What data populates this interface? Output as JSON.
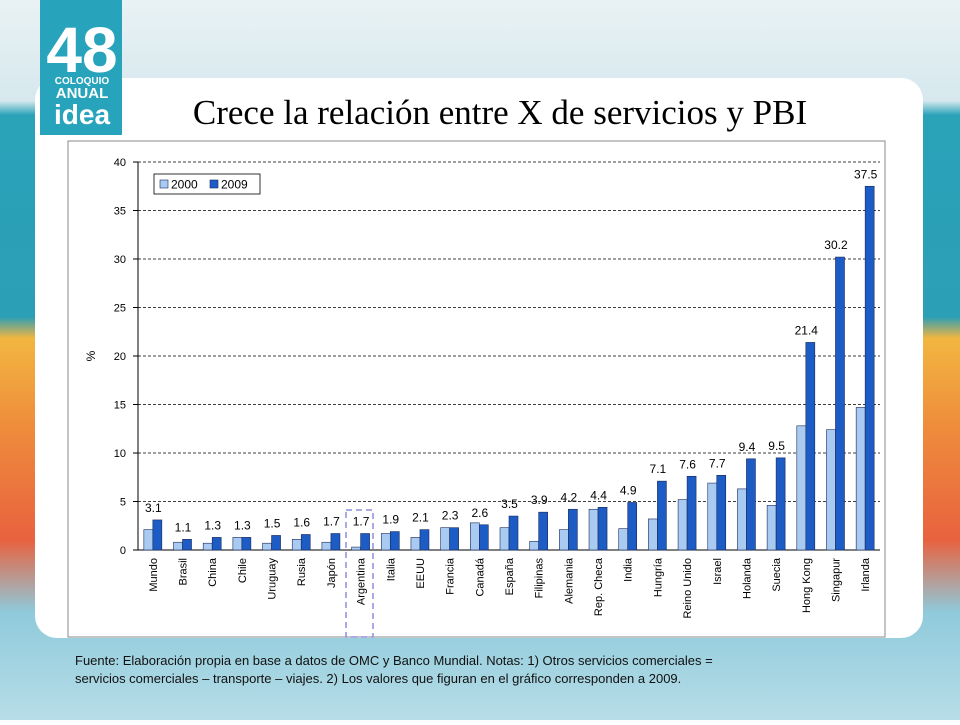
{
  "logo": {
    "number": "48",
    "line1": "COLOQUIO",
    "line2": "ANUAL",
    "line3": "idea"
  },
  "footer": [
    "Fuente: Elaboración propia en base a datos de OMC y Banco Mundial. Notas: 1) Otros servicios comerciales =",
    "servicios comerciales – transporte – viajes. 2) Los valores que figuran en el gráfico corresponden a 2009."
  ],
  "chart_data": {
    "type": "bar",
    "title": "Crece la relación entre X de servicios y PBI",
    "y_label": "%",
    "categories": [
      "Mundo",
      "Brasil",
      "China",
      "Chile",
      "Uruguay",
      "Rusia",
      "Japón",
      "Argentina",
      "Italia",
      "EEUU",
      "Francia",
      "Canadá",
      "España",
      "Filipinas",
      "Alemania",
      "Rep. Checa",
      "India",
      "Hungría",
      "Reino Unido",
      "Israel",
      "Holanda",
      "Suecia",
      "Hong Kong",
      "Singapur",
      "Irlanda"
    ],
    "series": [
      {
        "name": "2000",
        "color": "#a9cbf2",
        "data_labels": false,
        "values": [
          2.1,
          0.8,
          0.7,
          1.3,
          0.7,
          1.1,
          0.8,
          0.3,
          1.7,
          1.3,
          2.3,
          2.8,
          2.3,
          0.9,
          2.1,
          4.2,
          2.2,
          3.2,
          5.2,
          6.9,
          6.3,
          4.6,
          12.8,
          12.4,
          14.7
        ]
      },
      {
        "name": "2009",
        "color": "#1c5cc4",
        "data_labels": true,
        "values": [
          3.1,
          1.1,
          1.3,
          1.3,
          1.5,
          1.6,
          1.7,
          1.7,
          1.9,
          2.1,
          2.3,
          2.6,
          3.5,
          3.9,
          4.2,
          4.4,
          4.9,
          7.1,
          7.6,
          7.7,
          9.4,
          9.5,
          21.4,
          30.2,
          37.5
        ]
      }
    ],
    "ylim": [
      0,
      40
    ],
    "yticks": [
      0,
      5,
      10,
      15,
      20,
      25,
      30,
      35,
      40
    ],
    "grid": true,
    "legend": "top-left"
  }
}
